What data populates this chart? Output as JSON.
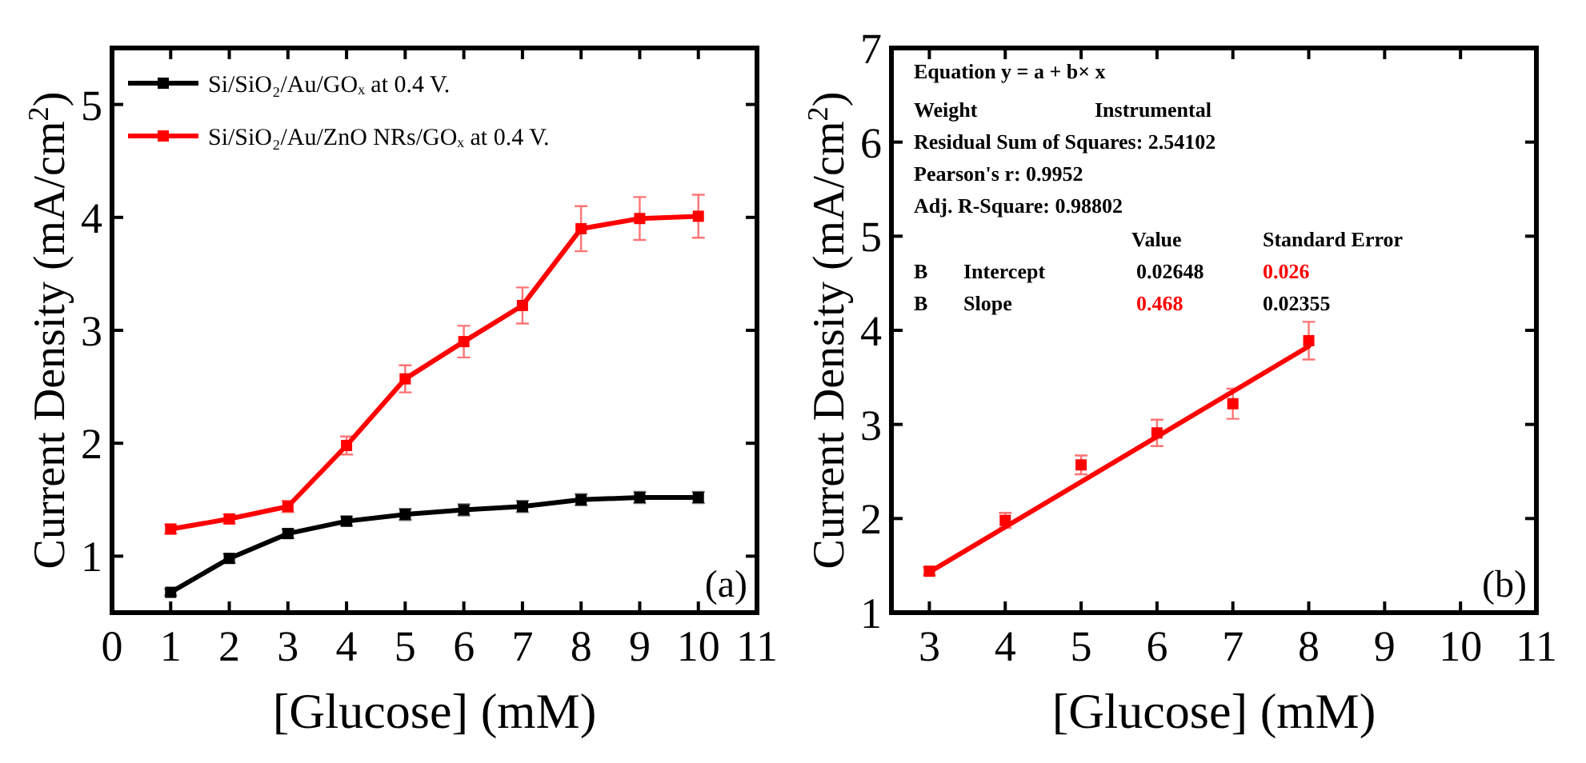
{
  "chart_data": [
    {
      "type": "line",
      "xlabel": "[Glucose] (mM)",
      "ylabel": "Current Density (mA/cm$^{2}$)",
      "xlim": [
        0,
        11
      ],
      "xticks": [
        0,
        1,
        2,
        3,
        4,
        5,
        6,
        7,
        8,
        9,
        10,
        11
      ],
      "ylim": [
        0.5,
        5.5
      ],
      "yticks": [
        1,
        2,
        3,
        4,
        5
      ],
      "x": [
        1,
        2,
        3,
        4,
        5,
        6,
        7,
        8,
        9,
        10
      ],
      "marker": "square",
      "legend": "top left",
      "annotations": [
        "(a)"
      ],
      "series": [
        {
          "name": "Si/SiO₂/Au/GOₓ at 0.4 V.",
          "color": "#000000",
          "values": [
            0.68,
            0.98,
            1.2,
            1.31,
            1.37,
            1.41,
            1.44,
            1.5,
            1.52,
            1.52
          ],
          "errors": [
            0.03,
            0.04,
            0.04,
            0.04,
            0.05,
            0.05,
            0.05,
            0.05,
            0.05,
            0.05
          ]
        },
        {
          "name": "Si/SiO₂/Au/ZnO NRs/GOₓ at 0.4 V.",
          "color": "#ff0000",
          "values": [
            1.24,
            1.33,
            1.44,
            1.98,
            2.57,
            2.9,
            3.22,
            3.9,
            3.99,
            4.01
          ],
          "errors": [
            0.04,
            0.04,
            0.05,
            0.08,
            0.12,
            0.14,
            0.16,
            0.2,
            0.19,
            0.19
          ]
        }
      ]
    },
    {
      "type": "scatter",
      "xlabel": "[Glucose] (mM)",
      "ylabel": "Current Density (mA/cm$^{2}$)",
      "xlim": [
        2.5,
        11
      ],
      "xticks": [
        3,
        4,
        5,
        6,
        7,
        8,
        9,
        10,
        11
      ],
      "ylim": [
        1,
        7
      ],
      "yticks": [
        1,
        2,
        3,
        4,
        5,
        6,
        7
      ],
      "x": [
        3,
        4,
        5,
        6,
        7,
        8
      ],
      "marker": "square",
      "annotations": [
        "Equation y = a + b× x",
        "Weight",
        "Instrumental",
        "Residual Sum of Squares: 2.54102",
        "Pearson's r: 0.9952",
        "Adj. R-Square: 0.98802",
        "Value",
        "Standard Error",
        "B",
        "Intercept",
        "0.02648",
        "0.026",
        "B",
        "Slope",
        "0.468",
        "0.02355",
        "(b)"
      ],
      "series": [
        {
          "color": "#ff0000",
          "values": [
            1.44,
            1.98,
            2.57,
            2.91,
            3.22,
            3.89
          ],
          "errors": [
            0.04,
            0.08,
            0.1,
            0.14,
            0.16,
            0.2
          ]
        },
        {
          "type": "line",
          "marker": "none",
          "color": "#ff0000",
          "x": [
            3,
            8
          ],
          "values": [
            1.43,
            3.83
          ]
        }
      ]
    }
  ]
}
